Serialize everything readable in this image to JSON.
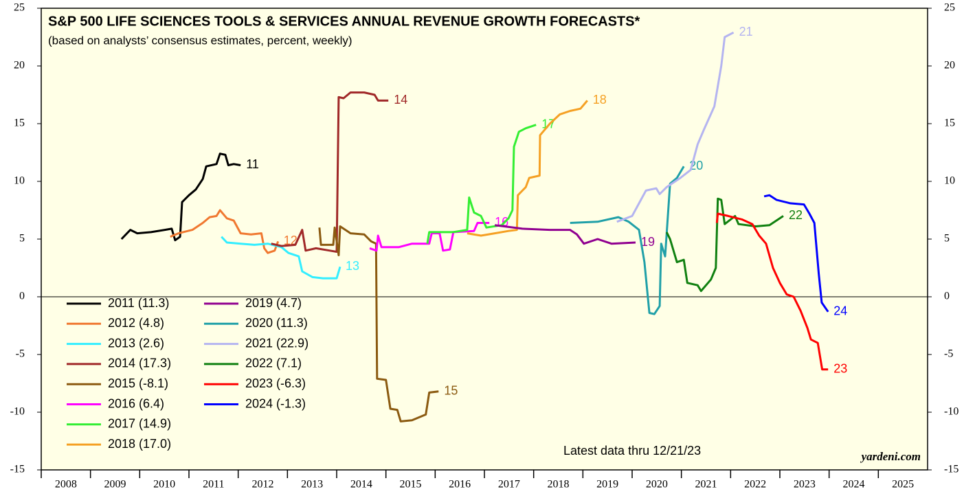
{
  "chart_data": {
    "type": "line",
    "title": "S&P 500 LIFE SCIENCES TOOLS & SERVICES ANNUAL REVENUE GROWTH FORECASTS*",
    "subtitle": "(based on analysts’ consensus estimates, percent, weekly)",
    "annotations": [
      "Latest data thru 12/21/23",
      "yardeni.com"
    ],
    "xlim": [
      2008,
      2026
    ],
    "xticks": [
      2008,
      2009,
      2010,
      2011,
      2012,
      2013,
      2014,
      2015,
      2016,
      2017,
      2018,
      2019,
      2020,
      2021,
      2022,
      2023,
      2024,
      2025
    ],
    "ylim": [
      -15,
      25
    ],
    "yticks": [
      -15,
      -10,
      -5,
      0,
      5,
      10,
      15,
      20,
      25
    ],
    "y2lim": [
      -15,
      25
    ],
    "y2ticks": [
      -15,
      -10,
      -5,
      0,
      5,
      10,
      15,
      20,
      25
    ],
    "zero_line": true,
    "legend": "lower left",
    "series": [
      {
        "name": "2011 (11.3)",
        "label": "11",
        "color": "#000000",
        "x": [
          2009.63,
          2009.81,
          2009.95,
          2010.23,
          2010.51,
          2010.65,
          2010.72,
          2010.82,
          2010.86,
          2011.0,
          2011.14,
          2011.28,
          2011.35,
          2011.56,
          2011.63,
          2011.74,
          2011.8,
          2011.91,
          2012.05
        ],
        "values": [
          5.0,
          5.8,
          5.5,
          5.6,
          5.8,
          5.9,
          4.9,
          5.2,
          8.2,
          8.8,
          9.3,
          10.2,
          11.3,
          11.5,
          12.4,
          12.3,
          11.4,
          11.5,
          11.4
        ]
      },
      {
        "name": "2012 (4.8)",
        "label": "12",
        "color": "#f07830",
        "x": [
          2010.62,
          2010.79,
          2011.07,
          2011.28,
          2011.42,
          2011.56,
          2011.63,
          2011.77,
          2011.91,
          2012.05,
          2012.26,
          2012.47,
          2012.53,
          2012.6,
          2012.74,
          2012.81
        ],
        "values": [
          5.2,
          5.5,
          5.8,
          6.4,
          6.9,
          7.0,
          7.5,
          6.8,
          6.6,
          5.5,
          5.4,
          5.5,
          4.2,
          3.8,
          4.0,
          4.8
        ]
      },
      {
        "name": "2013 (2.6)",
        "label": "13",
        "color": "#33eeff",
        "x": [
          2011.66,
          2011.77,
          2012.05,
          2012.33,
          2012.6,
          2012.88,
          2013.02,
          2013.23,
          2013.3,
          2013.51,
          2013.72,
          2014.0,
          2014.07
        ],
        "values": [
          5.2,
          4.7,
          4.6,
          4.5,
          4.6,
          4.3,
          3.8,
          3.5,
          2.2,
          1.7,
          1.6,
          1.6,
          2.6
        ]
      },
      {
        "name": "2014 (17.3)",
        "label": "14",
        "color": "#a02828",
        "x": [
          2012.67,
          2012.88,
          2013.16,
          2013.3,
          2013.37,
          2013.58,
          2013.86,
          2014.0,
          2014.04,
          2014.14,
          2014.28,
          2014.56,
          2014.77,
          2014.84,
          2015.05
        ],
        "values": [
          4.6,
          4.4,
          4.5,
          5.8,
          4.0,
          4.2,
          4.0,
          3.9,
          17.3,
          17.2,
          17.7,
          17.7,
          17.5,
          17.0,
          17.0
        ]
      },
      {
        "name": "2015 (-8.1)",
        "label": "15",
        "color": "#8b5a10",
        "x": [
          2013.65,
          2013.68,
          2013.93,
          2013.96,
          2014.04,
          2014.07,
          2014.28,
          2014.56,
          2014.7,
          2014.8,
          2014.82,
          2015.0,
          2015.09,
          2015.23,
          2015.3,
          2015.53,
          2015.81,
          2015.88,
          2016.07
        ],
        "values": [
          6.0,
          4.5,
          4.5,
          6.0,
          3.6,
          6.1,
          5.5,
          5.4,
          4.8,
          4.6,
          -7.1,
          -7.2,
          -9.7,
          -9.8,
          -10.8,
          -10.7,
          -10.2,
          -8.3,
          -8.2
        ]
      },
      {
        "name": "2016 (6.4)",
        "label": "16",
        "color": "#ff00ff",
        "x": [
          2014.67,
          2014.81,
          2014.84,
          2014.91,
          2015.26,
          2015.53,
          2015.88,
          2015.93,
          2016.09,
          2016.16,
          2016.3,
          2016.37,
          2016.79,
          2016.86,
          2017.1
        ],
        "values": [
          4.2,
          4.0,
          5.3,
          4.3,
          4.3,
          4.6,
          4.6,
          5.5,
          5.5,
          4.0,
          4.1,
          5.6,
          5.7,
          6.4,
          6.4
        ]
      },
      {
        "name": "2017 (14.9)",
        "label": "17",
        "color": "#33ee33",
        "x": [
          2015.84,
          2015.88,
          2016.37,
          2016.65,
          2016.69,
          2016.79,
          2016.93,
          2017.04,
          2017.35,
          2017.49,
          2017.57,
          2017.6,
          2017.7,
          2017.84,
          2018.05
        ],
        "values": [
          4.6,
          5.6,
          5.6,
          5.8,
          8.6,
          7.3,
          7.0,
          6.0,
          6.2,
          6.8,
          7.5,
          13.0,
          14.3,
          14.6,
          14.9
        ]
      },
      {
        "name": "2018 (17.0)",
        "label": "18",
        "color": "#f5a023",
        "x": [
          2016.65,
          2016.93,
          2017.21,
          2017.49,
          2017.66,
          2017.68,
          2017.84,
          2017.91,
          2018.12,
          2018.13,
          2018.33,
          2018.53,
          2018.74,
          2018.95,
          2019.09
        ],
        "values": [
          5.5,
          5.3,
          5.5,
          5.7,
          5.8,
          8.8,
          9.5,
          10.3,
          10.5,
          14.0,
          15.0,
          15.8,
          16.1,
          16.3,
          17.0
        ]
      },
      {
        "name": "2019 (4.7)",
        "label": "19",
        "color": "#900090",
        "x": [
          2017.21,
          2017.77,
          2018.33,
          2018.74,
          2018.88,
          2019.02,
          2019.3,
          2019.58,
          2020.07
        ],
        "values": [
          6.2,
          5.9,
          5.8,
          5.8,
          5.4,
          4.6,
          5.0,
          4.6,
          4.7
        ]
      },
      {
        "name": "2020 (11.3)",
        "label": "20",
        "color": "#20a0a8",
        "x": [
          2018.74,
          2019.3,
          2019.72,
          2019.93,
          2020.14,
          2020.25,
          2020.35,
          2020.45,
          2020.56,
          2020.59,
          2020.67,
          2020.77,
          2020.91,
          2021.05
        ],
        "values": [
          6.4,
          6.5,
          6.9,
          6.5,
          5.8,
          3.0,
          -1.4,
          -1.5,
          -0.8,
          4.6,
          3.5,
          9.8,
          10.3,
          11.3
        ]
      },
      {
        "name": "2021 (22.9)",
        "label": "21",
        "color": "#b4b4f0",
        "x": [
          2019.69,
          2020.0,
          2020.28,
          2020.49,
          2020.56,
          2020.7,
          2020.98,
          2021.19,
          2021.33,
          2021.46,
          2021.67,
          2021.81,
          2021.88,
          2022.06
        ],
        "values": [
          6.5,
          7.0,
          9.2,
          9.4,
          8.9,
          9.5,
          10.3,
          11.0,
          13.2,
          14.5,
          16.5,
          20.0,
          22.5,
          22.9
        ]
      },
      {
        "name": "2022 (7.1)",
        "label": "22",
        "color": "#108010",
        "x": [
          2020.7,
          2020.77,
          2020.91,
          2021.05,
          2021.12,
          2021.33,
          2021.4,
          2021.6,
          2021.7,
          2021.74,
          2021.81,
          2021.88,
          2022.09,
          2022.16,
          2022.51,
          2022.79,
          2023.07
        ],
        "values": [
          5.6,
          5.0,
          3.0,
          3.2,
          1.2,
          1.0,
          0.5,
          1.5,
          2.5,
          8.5,
          8.4,
          6.3,
          7.0,
          6.3,
          6.1,
          6.2,
          7.0
        ]
      },
      {
        "name": "2023 (-6.3)",
        "label": "23",
        "color": "#ff0000",
        "x": [
          2021.72,
          2021.74,
          2021.95,
          2022.23,
          2022.44,
          2022.58,
          2022.72,
          2022.86,
          2023.0,
          2023.14,
          2023.28,
          2023.42,
          2023.56,
          2023.63,
          2023.77,
          2023.86,
          2023.98
        ],
        "values": [
          6.4,
          7.2,
          7.0,
          6.7,
          6.3,
          5.3,
          4.6,
          2.5,
          1.2,
          0.2,
          0.0,
          -1.2,
          -2.7,
          -3.7,
          -4.0,
          -6.3,
          -6.3
        ]
      },
      {
        "name": "2024 (-1.3)",
        "label": "24",
        "color": "#0000ff",
        "x": [
          2022.68,
          2022.79,
          2022.93,
          2023.21,
          2023.49,
          2023.6,
          2023.7,
          2023.79,
          2023.85,
          2023.98
        ],
        "values": [
          8.7,
          8.8,
          8.4,
          8.1,
          8.0,
          7.2,
          6.4,
          2.0,
          -0.5,
          -1.3
        ]
      }
    ]
  }
}
